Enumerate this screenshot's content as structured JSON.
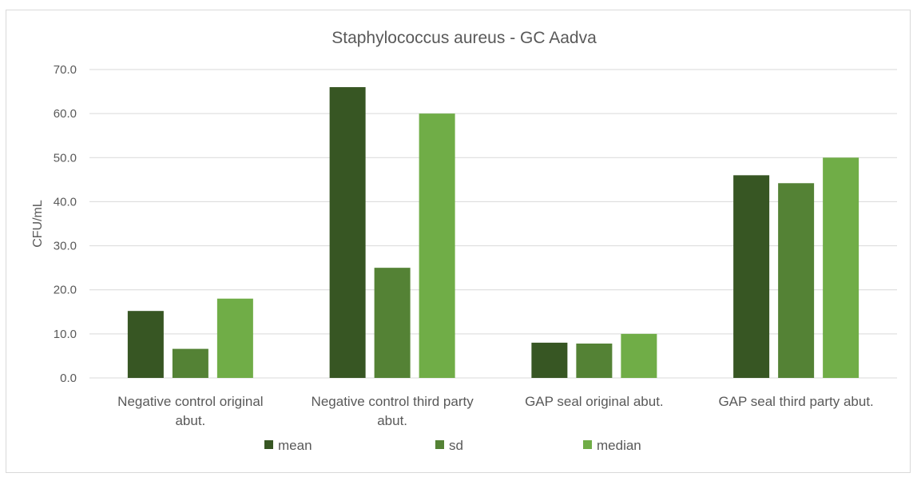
{
  "chart_data": {
    "type": "bar",
    "title": "Staphylococcus aureus -  GC Aadva",
    "ylabel": "CFU/mL",
    "xlabel": "",
    "ylim": [
      0,
      70
    ],
    "yticks": [
      "0.0",
      "10.0",
      "20.0",
      "30.0",
      "40.0",
      "50.0",
      "60.0",
      "70.0"
    ],
    "categories": [
      [
        "Negative control original",
        "abut."
      ],
      [
        "Negative control third party",
        "abut."
      ],
      [
        "GAP seal original abut."
      ],
      [
        "GAP seal third party abut."
      ]
    ],
    "series": [
      {
        "name": "mean",
        "values": [
          15.2,
          66.0,
          8.0,
          46.0
        ],
        "color": "#375623"
      },
      {
        "name": "sd",
        "values": [
          6.6,
          25.0,
          7.8,
          44.2
        ],
        "color": "#548235"
      },
      {
        "name": "median",
        "values": [
          18.0,
          60.0,
          10.0,
          50.0
        ],
        "color": "#70ad47"
      }
    ],
    "grid": true,
    "legend_position": "bottom"
  }
}
